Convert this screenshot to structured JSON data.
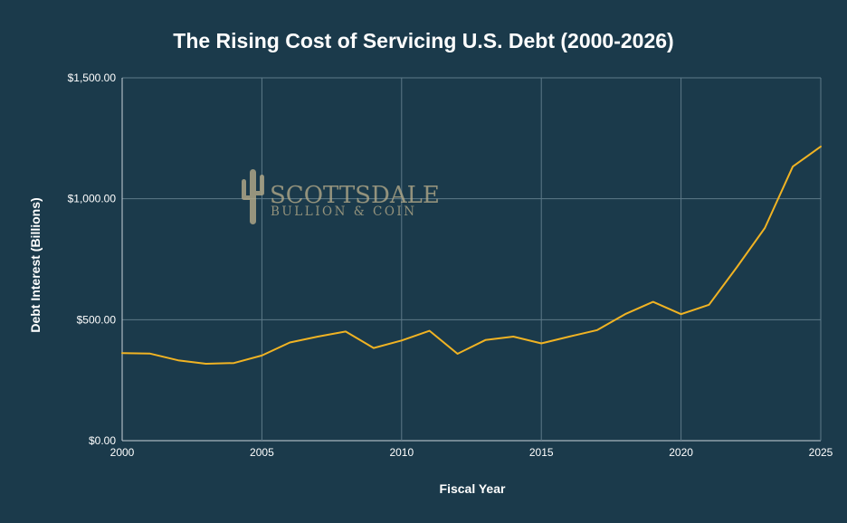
{
  "chart_data": {
    "type": "line",
    "title": "The Rising Cost of Servicing U.S. Debt (2000-2026)",
    "xlabel": "Fiscal Year",
    "ylabel": "Debt Interest (Billions)",
    "xlim": [
      2000,
      2025
    ],
    "ylim": [
      0,
      1500
    ],
    "x_ticks": [
      2000,
      2005,
      2010,
      2015,
      2020,
      2025
    ],
    "y_ticks": [
      "$0.00",
      "$500.00",
      "$1,000.00",
      "$1,500.00"
    ],
    "y_tick_values": [
      0,
      500,
      1000,
      1500
    ],
    "grid": true,
    "legend": "none",
    "series": [
      {
        "color": "#f0b323",
        "x": [
          2000,
          2001,
          2002,
          2003,
          2004,
          2005,
          2006,
          2007,
          2008,
          2009,
          2010,
          2011,
          2012,
          2013,
          2014,
          2015,
          2016,
          2017,
          2018,
          2019,
          2020,
          2021,
          2022,
          2023,
          2024,
          2025
        ],
        "values": [
          362,
          360,
          332,
          318,
          321,
          352,
          406,
          430,
          451,
          383,
          414,
          454,
          359,
          416,
          430,
          402,
          430,
          457,
          523,
          574,
          523,
          562,
          718,
          879,
          1133,
          1216
        ]
      }
    ]
  },
  "watermark": {
    "line1": "SCOTTSDALE",
    "line2": "BULLION & COIN",
    "color": "#b5ab8a"
  },
  "colors": {
    "background": "#1b3a4b",
    "grid": "#5e7a89",
    "text": "#ffffff"
  }
}
